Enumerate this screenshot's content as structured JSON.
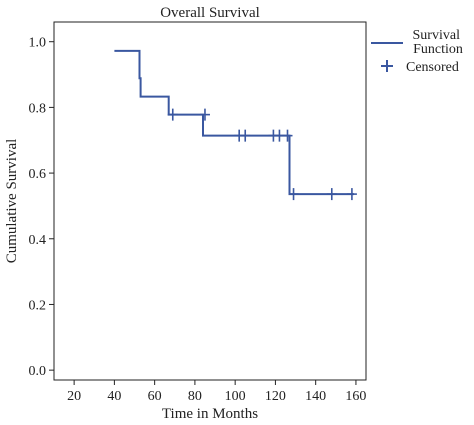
{
  "chart_data": {
    "type": "line",
    "title": "Overall Survival",
    "xlabel": "Time in Months",
    "ylabel": "Cumulative Survival",
    "xlim": [
      10,
      165
    ],
    "ylim": [
      -0.03,
      1.06
    ],
    "x_ticks": [
      20,
      40,
      60,
      80,
      100,
      120,
      140,
      160
    ],
    "x_tick_labels": [
      "20",
      "40",
      "60",
      "80",
      "100",
      "120",
      "140",
      "160"
    ],
    "y_ticks": [
      0.0,
      0.2,
      0.4,
      0.6,
      0.8,
      1.0
    ],
    "y_tick_labels": [
      "0.0",
      "0.2",
      "0.4",
      "0.6",
      "0.8",
      "1.0"
    ],
    "grid": false,
    "legend_position": "top-right",
    "colors": {
      "series": "#3a57a0",
      "axis": "#222222"
    },
    "series": [
      {
        "name": "Survival Function",
        "style": "step",
        "x": [
          40,
          52.5,
          52.5,
          53,
          53,
          67,
          67,
          84,
          84,
          127,
          127,
          159
        ],
        "y": [
          0.972,
          0.972,
          0.889,
          0.889,
          0.833,
          0.833,
          0.778,
          0.778,
          0.714,
          0.714,
          0.536,
          0.536
        ]
      },
      {
        "name": "Censored",
        "style": "marker",
        "x": [
          69,
          85,
          102,
          105,
          119,
          122,
          126,
          129,
          148,
          158
        ],
        "y": [
          0.778,
          0.778,
          0.714,
          0.714,
          0.714,
          0.714,
          0.714,
          0.536,
          0.536,
          0.536
        ]
      }
    ],
    "legend": [
      "Survival\nFunction",
      "Censored"
    ]
  }
}
